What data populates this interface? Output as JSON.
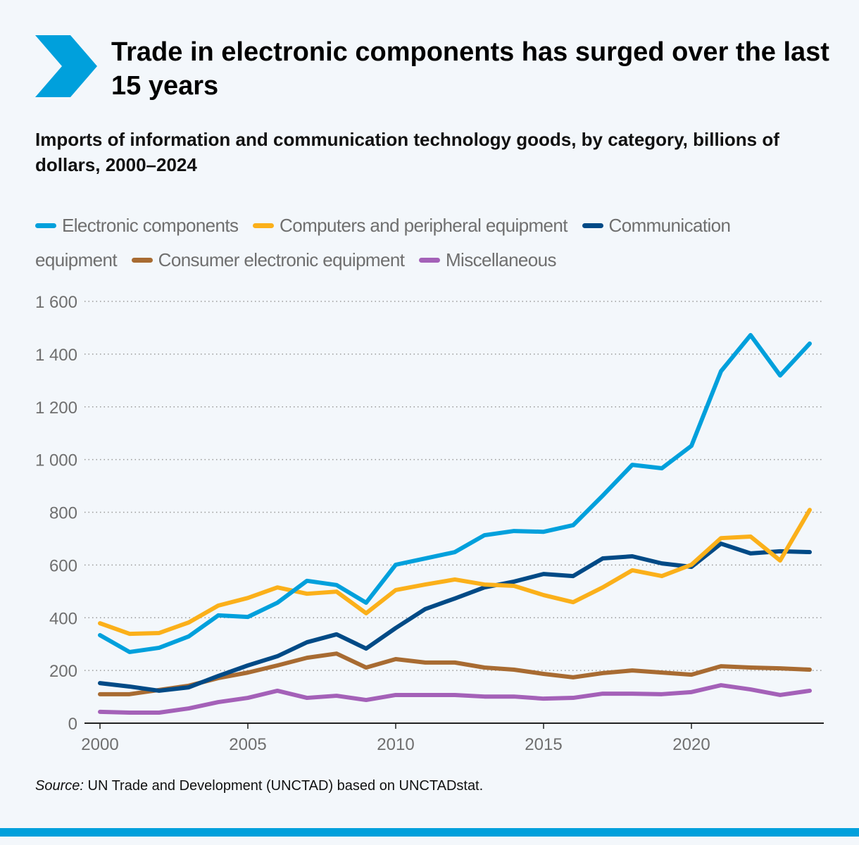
{
  "header": {
    "title": "Trade in electronic components has surged over the last 15 years",
    "subtitle": "Imports of information and communication technology goods, by category, billions of dollars, 2000–2024",
    "icon": "chevron-right-icon",
    "accent": "#00a0dc"
  },
  "source": {
    "label": "Source:",
    "text": " UN Trade and Development (UNCTAD) based on UNCTADstat."
  },
  "chart_data": {
    "type": "line",
    "title": "Imports of information and communication technology goods, by category, billions of dollars, 2000–2024",
    "xlabel": "",
    "ylabel": "",
    "x": [
      2000,
      2001,
      2002,
      2003,
      2004,
      2005,
      2006,
      2007,
      2008,
      2009,
      2010,
      2011,
      2012,
      2013,
      2014,
      2015,
      2016,
      2017,
      2018,
      2019,
      2020,
      2021,
      2022,
      2023,
      2024
    ],
    "xticks": [
      "2000",
      "2005",
      "2010",
      "2015",
      "2020"
    ],
    "yticks": [
      "0",
      "200",
      "400",
      "600",
      "800",
      "1 000",
      "1 200",
      "1 400",
      "1 600"
    ],
    "ylim": [
      0,
      1600
    ],
    "grid": "horizontal dotted",
    "legend_position": "top",
    "series": [
      {
        "name": "Electronic components",
        "color": "#00a0dc",
        "values": [
          334,
          270,
          286,
          329,
          409,
          403,
          457,
          540,
          524,
          457,
          601,
          625,
          649,
          713,
          729,
          726,
          751,
          863,
          980,
          967,
          1052,
          1335,
          1472,
          1319,
          1440
        ]
      },
      {
        "name": "Computers and peripheral equipment",
        "color": "#fbb01a",
        "values": [
          379,
          339,
          342,
          382,
          446,
          475,
          515,
          491,
          499,
          417,
          505,
          526,
          545,
          526,
          521,
          486,
          459,
          515,
          580,
          558,
          601,
          702,
          708,
          617,
          809
        ]
      },
      {
        "name": "Communication equipment",
        "color": "#004a86",
        "values": [
          152,
          139,
          123,
          136,
          179,
          219,
          254,
          307,
          337,
          283,
          361,
          433,
          473,
          515,
          537,
          566,
          558,
          625,
          633,
          606,
          593,
          681,
          644,
          652,
          649
        ]
      },
      {
        "name": "Consumer electronic equipment",
        "color": "#a86b32",
        "values": [
          110,
          110,
          126,
          142,
          171,
          192,
          219,
          248,
          264,
          211,
          243,
          230,
          230,
          211,
          203,
          187,
          174,
          190,
          200,
          192,
          184,
          216,
          211,
          208,
          203
        ]
      },
      {
        "name": "Miscellaneous",
        "color": "#a461b8",
        "values": [
          43,
          40,
          40,
          56,
          80,
          96,
          123,
          96,
          104,
          88,
          107,
          107,
          107,
          101,
          101,
          93,
          96,
          112,
          112,
          110,
          118,
          144,
          128,
          107,
          123
        ]
      }
    ]
  }
}
